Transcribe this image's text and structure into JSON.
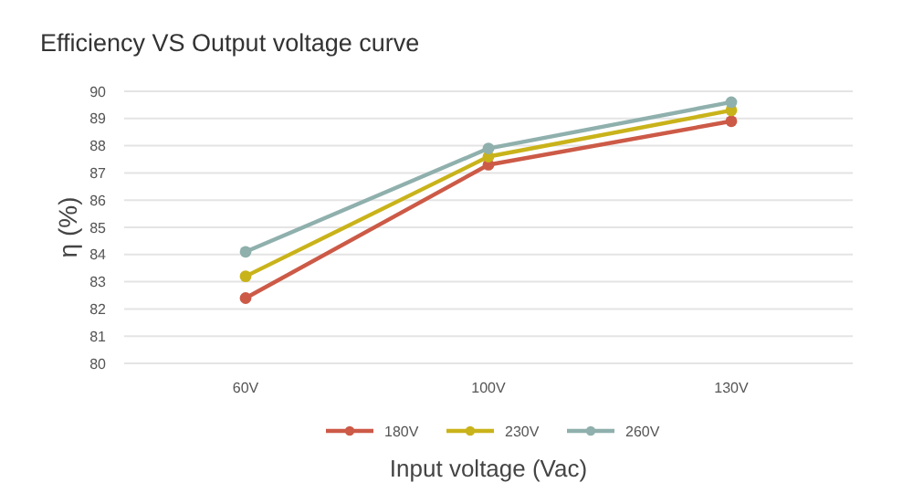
{
  "chart_data": {
    "type": "line",
    "title": "Efficiency VS Output voltage curve",
    "xlabel": "Input voltage (Vac)",
    "ylabel": "η (%)",
    "categories": [
      "60V",
      "100V",
      "130V"
    ],
    "series": [
      {
        "name": "180V",
        "color": "#cc5a47",
        "values": [
          82.4,
          87.3,
          88.9
        ]
      },
      {
        "name": "230V",
        "color": "#c9b31a",
        "values": [
          83.2,
          87.6,
          89.3
        ]
      },
      {
        "name": "260V",
        "color": "#8fb0ad",
        "values": [
          84.1,
          87.9,
          89.6
        ]
      }
    ],
    "ylim": [
      80,
      90
    ],
    "yticks": [
      80,
      81,
      82,
      83,
      84,
      85,
      86,
      87,
      88,
      89,
      90
    ],
    "grid": "y",
    "legend": "bottom",
    "marker": "circle",
    "line_style": "solid"
  }
}
